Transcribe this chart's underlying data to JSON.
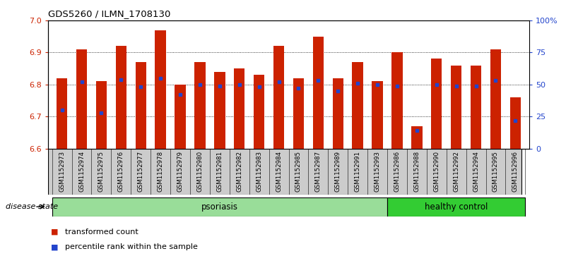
{
  "title": "GDS5260 / ILMN_1708130",
  "samples": [
    "GSM1152973",
    "GSM1152974",
    "GSM1152975",
    "GSM1152976",
    "GSM1152977",
    "GSM1152978",
    "GSM1152979",
    "GSM1152980",
    "GSM1152981",
    "GSM1152982",
    "GSM1152983",
    "GSM1152984",
    "GSM1152985",
    "GSM1152987",
    "GSM1152989",
    "GSM1152991",
    "GSM1152993",
    "GSM1152986",
    "GSM1152988",
    "GSM1152990",
    "GSM1152992",
    "GSM1152994",
    "GSM1152995",
    "GSM1152996"
  ],
  "transformed_count": [
    6.82,
    6.91,
    6.81,
    6.92,
    6.87,
    6.97,
    6.8,
    6.87,
    6.84,
    6.85,
    6.83,
    6.92,
    6.82,
    6.95,
    6.82,
    6.87,
    6.81,
    6.9,
    6.67,
    6.88,
    6.86,
    6.86,
    6.91,
    6.76
  ],
  "percentile_rank": [
    0.3,
    0.52,
    0.28,
    0.54,
    0.48,
    0.55,
    0.42,
    0.5,
    0.49,
    0.5,
    0.48,
    0.52,
    0.47,
    0.53,
    0.45,
    0.51,
    0.5,
    0.49,
    0.14,
    0.5,
    0.49,
    0.49,
    0.53,
    0.22
  ],
  "group": [
    "psoriasis",
    "psoriasis",
    "psoriasis",
    "psoriasis",
    "psoriasis",
    "psoriasis",
    "psoriasis",
    "psoriasis",
    "psoriasis",
    "psoriasis",
    "psoriasis",
    "psoriasis",
    "psoriasis",
    "psoriasis",
    "psoriasis",
    "psoriasis",
    "psoriasis",
    "healthy control",
    "healthy control",
    "healthy control",
    "healthy control",
    "healthy control",
    "healthy control",
    "healthy control"
  ],
  "ylim": [
    6.6,
    7.0
  ],
  "bar_color": "#cc2200",
  "percentile_color": "#2244cc",
  "psoriasis_color": "#99dd99",
  "healthy_color": "#33cc33",
  "bg_color": "#cccccc",
  "right_axis_ticks": [
    0,
    25,
    50,
    75,
    100
  ],
  "right_axis_labels": [
    "0",
    "25",
    "50",
    "75",
    "100%"
  ],
  "left_axis_ticks": [
    6.6,
    6.7,
    6.8,
    6.9,
    7.0
  ],
  "grid_ticks": [
    6.7,
    6.8,
    6.9
  ],
  "psoriasis_count": 17,
  "healthy_count": 7
}
